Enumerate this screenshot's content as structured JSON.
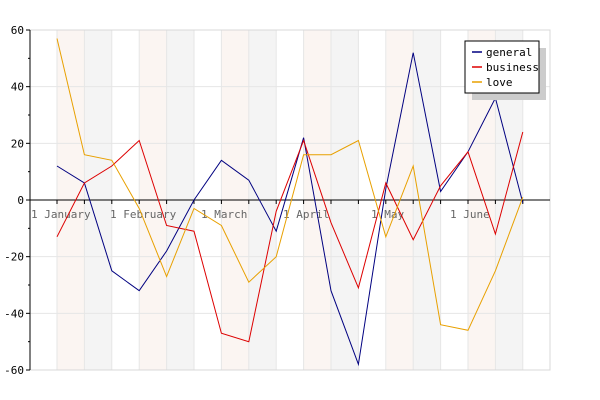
{
  "chart_data": {
    "type": "line",
    "x_tick_labels": [
      "1 January",
      "1 February",
      "1 March",
      "1 April",
      "1 May",
      "1 June"
    ],
    "y_ticks": [
      60,
      40,
      20,
      0,
      -20,
      -40,
      -60
    ],
    "ylim": [
      -60,
      60
    ],
    "x_points": 18,
    "legend_position": "top-right",
    "grid": true,
    "series": [
      {
        "name": "general",
        "color": "#000080",
        "values": [
          12,
          6,
          -25,
          -32,
          -18,
          0,
          14,
          7,
          -11,
          22,
          -32,
          -58,
          4,
          52,
          3,
          17,
          36,
          -1
        ]
      },
      {
        "name": "business",
        "color": "#dd0000",
        "values": [
          -13,
          6,
          12,
          21,
          -9,
          -11,
          -47,
          -50,
          -4,
          21,
          -8,
          -31,
          6,
          -14,
          5,
          17,
          -12,
          24
        ]
      },
      {
        "name": "love",
        "color": "#e8a000",
        "values": [
          57,
          16,
          14,
          -3,
          -27,
          -3,
          -9,
          -29,
          -20,
          16,
          16,
          21,
          -13,
          12,
          -44,
          -46,
          -25,
          1
        ]
      }
    ]
  }
}
